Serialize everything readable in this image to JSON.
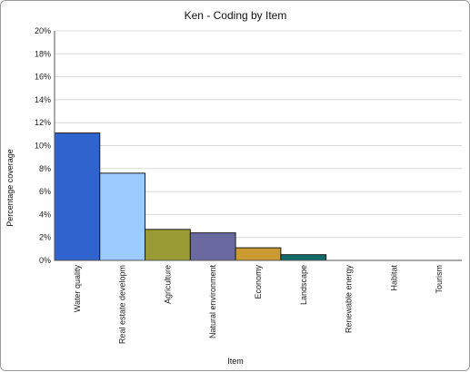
{
  "chart_data": {
    "type": "bar",
    "title": "Ken - Coding by Item",
    "xlabel": "Item",
    "ylabel": "Percentage coverage",
    "categories": [
      "Water quality",
      "Real estate developm",
      "Agriculture",
      "Natural environment",
      "Economy",
      "Landscape",
      "Renewable energy",
      "Habitat",
      "Tourism"
    ],
    "values": [
      11.1,
      7.6,
      2.7,
      2.4,
      1.1,
      0.5,
      0,
      0,
      0
    ],
    "colors": [
      "#2f64cf",
      "#9ccbff",
      "#9b9b35",
      "#6a6aa0",
      "#cc9a33",
      "#116b6b",
      "#888888",
      "#888888",
      "#888888"
    ],
    "ylim": [
      0,
      20
    ],
    "yticks": [
      0,
      2,
      4,
      6,
      8,
      10,
      12,
      14,
      16,
      18,
      20
    ],
    "ytick_suffix": "%",
    "grid": true
  }
}
